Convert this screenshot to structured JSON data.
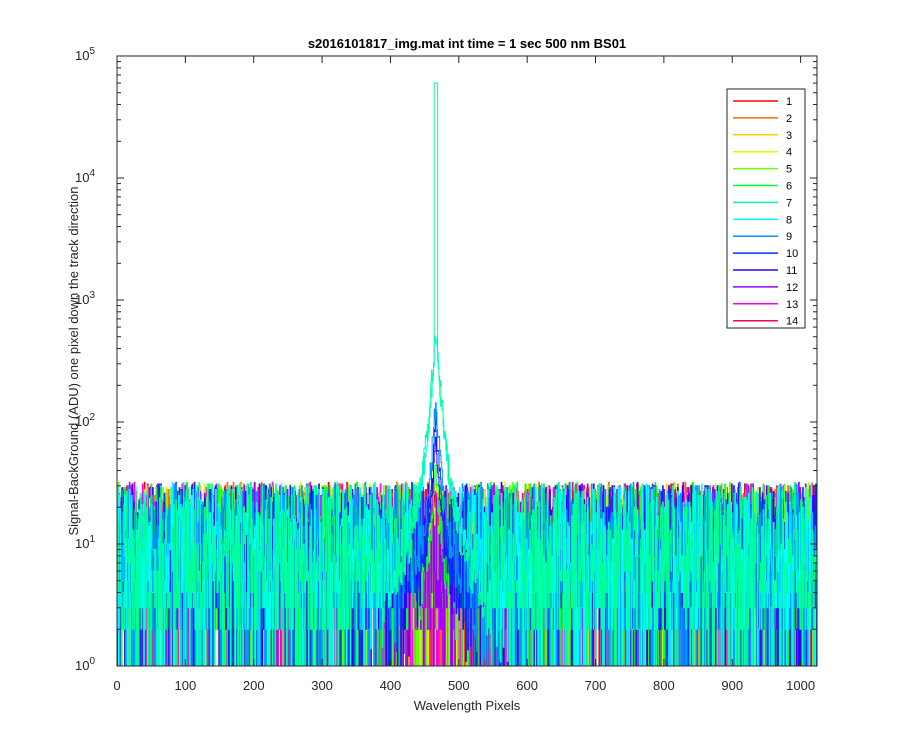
{
  "chart_data": {
    "type": "line",
    "title": "s2016101817_img.mat int time = 1 sec  500 nm BS01",
    "xlabel": "Wavelength Pixels",
    "ylabel": "Signal-BackGround (ADU) one pixel down the track direction",
    "xlim": [
      0,
      1024
    ],
    "ylim": [
      1,
      100000
    ],
    "yscale": "log",
    "grid": false,
    "legend_position": "top-right",
    "x_ticks": [
      0,
      100,
      200,
      300,
      400,
      500,
      600,
      700,
      800,
      900,
      1000
    ],
    "y_ticks": [
      {
        "base": "10",
        "exp": "0"
      },
      {
        "base": "10",
        "exp": "1"
      },
      {
        "base": "10",
        "exp": "2"
      },
      {
        "base": "10",
        "exp": "3"
      },
      {
        "base": "10",
        "exp": "4"
      },
      {
        "base": "10",
        "exp": "5"
      }
    ],
    "series": [
      {
        "name": "1",
        "color": "#ff0000",
        "peak": 3
      },
      {
        "name": "2",
        "color": "#ff6600",
        "peak": 4
      },
      {
        "name": "3",
        "color": "#ffcc00",
        "peak": 5
      },
      {
        "name": "4",
        "color": "#ccff00",
        "peak": 6
      },
      {
        "name": "5",
        "color": "#66ff00",
        "peak": 10
      },
      {
        "name": "6",
        "color": "#00ff33",
        "peak": 40
      },
      {
        "name": "7",
        "color": "#00ff99",
        "peak": 60000
      },
      {
        "name": "8",
        "color": "#00ffff",
        "peak": 500
      },
      {
        "name": "9",
        "color": "#0099ff",
        "peak": 140
      },
      {
        "name": "10",
        "color": "#0033ff",
        "peak": 90
      },
      {
        "name": "11",
        "color": "#3300ff",
        "peak": 60
      },
      {
        "name": "12",
        "color": "#9900ff",
        "peak": 20
      },
      {
        "name": "13",
        "color": "#ff00ff",
        "peak": 8
      },
      {
        "name": "14",
        "color": "#ff0066",
        "peak": 5
      }
    ],
    "peak_center_x": 466,
    "noise_level_range": [
      1,
      40
    ]
  }
}
